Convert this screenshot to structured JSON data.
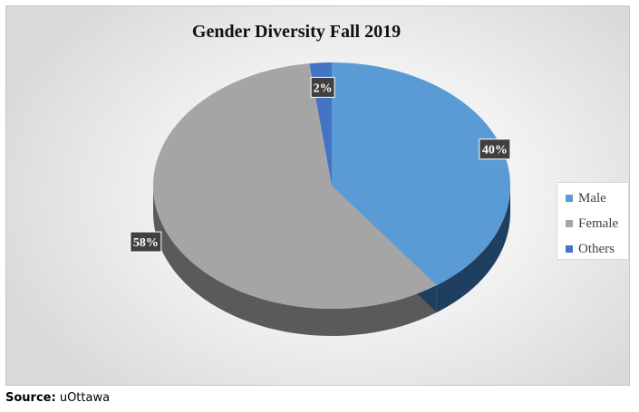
{
  "chart_data": {
    "type": "pie",
    "title": "Gender Diversity Fall 2019",
    "categories": [
      "Male",
      "Female",
      "Others"
    ],
    "values": [
      40,
      58,
      2
    ],
    "data_labels": [
      "40%",
      "58%",
      "2%"
    ],
    "colors": [
      "#5b9bd5",
      "#a5a5a5",
      "#4472c4"
    ],
    "side_colors": [
      "#1f3f61",
      "#5a5a5a",
      "#1f3c7a"
    ],
    "legend_position": "right"
  },
  "source": {
    "label": "Source:",
    "value": "uOttawa"
  }
}
